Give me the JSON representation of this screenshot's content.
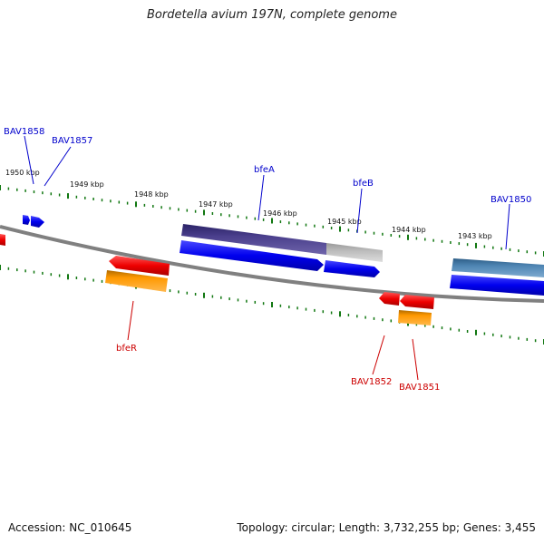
{
  "title": "Bordetella avium 197N, complete genome",
  "footer": {
    "accession": "Accession: NC_010645",
    "summary": "Topology: circular; Length: 3,732,255 bp; Genes: 3,455"
  },
  "colors": {
    "forward_gene": "#0000ee",
    "reverse_gene": "#ee0000",
    "reverse_rna": "#ff9900",
    "operon_purple": "#4a3f8c",
    "operon_steel": "#4f86b4",
    "grey_feature": "#bbbbbb",
    "backbone": "#808080",
    "ticks": "#117711",
    "forward_label": "#0000cc",
    "reverse_label": "#cc0000"
  },
  "kbp_labels": [
    "1950 kbp",
    "1949 kbp",
    "1948 kbp",
    "1947 kbp",
    "1946 kbp",
    "1945 kbp",
    "1944 kbp",
    "1943 kbp"
  ],
  "gene_labels": {
    "forward": [
      "BAV1858",
      "BAV1857",
      "bfeA",
      "bfeB",
      "BAV1850"
    ],
    "reverse": [
      "bfeR",
      "BAV1852",
      "BAV1851"
    ]
  },
  "features": [
    {
      "name": "BAV1858",
      "strand": "forward",
      "kind": "gene"
    },
    {
      "name": "BAV1857",
      "strand": "forward",
      "kind": "gene"
    },
    {
      "name": "bfeA",
      "strand": "forward",
      "kind": "gene"
    },
    {
      "name": "bfeB",
      "strand": "forward",
      "kind": "gene"
    },
    {
      "name": "BAV1850",
      "strand": "forward",
      "kind": "gene"
    },
    {
      "name": "bfeR",
      "strand": "reverse",
      "kind": "gene"
    },
    {
      "name": "BAV1852",
      "strand": "reverse",
      "kind": "gene"
    },
    {
      "name": "BAV1851",
      "strand": "reverse",
      "kind": "gene"
    }
  ]
}
